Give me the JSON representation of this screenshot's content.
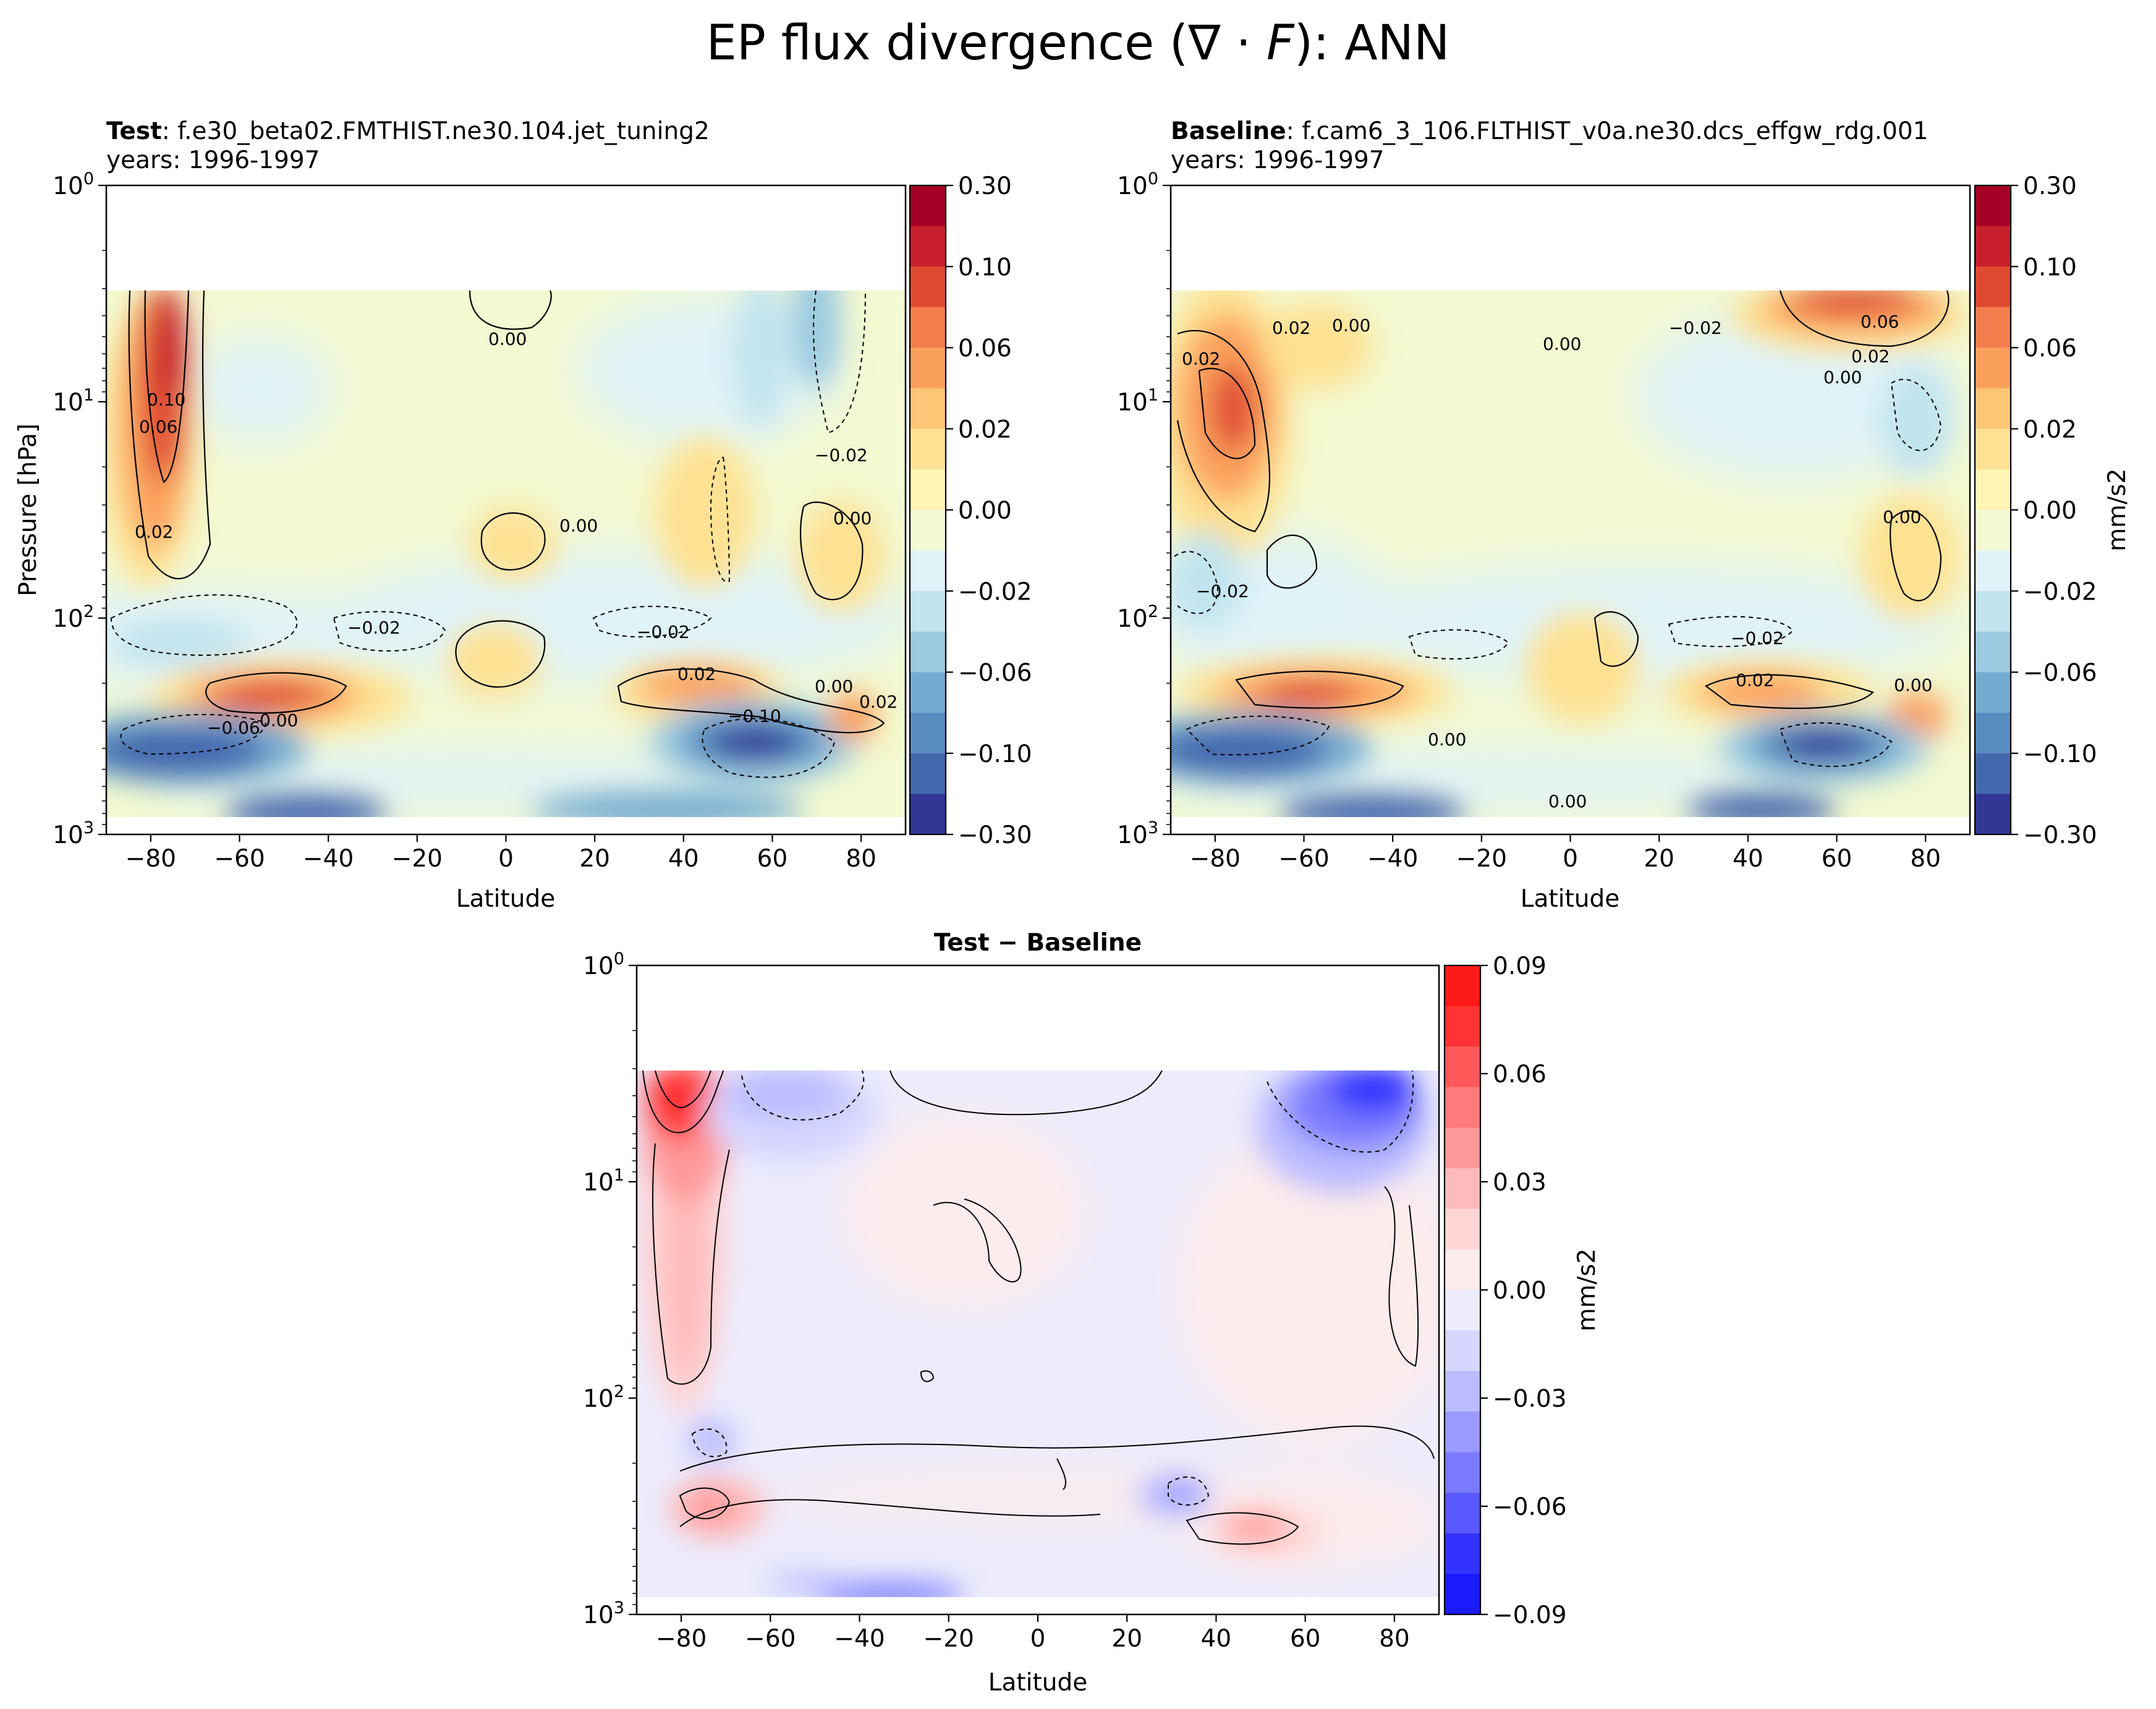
{
  "figure": {
    "title": "EP flux divergence (∇ · F): ANN",
    "title_plain": "EP flux divergence (",
    "title_symbol": "∇ · ",
    "title_var": "F",
    "title_end": "): ANN"
  },
  "chart_data": [
    {
      "type": "contourf",
      "name": "test",
      "title_bold": "Test",
      "title_rest": ": f.e30_beta02.FMTHIST.ne30.104.jet_tuning2",
      "subtitle": "years: 1996-1997",
      "xlabel": "Latitude",
      "ylabel": "Pressure [hPa]",
      "xlim": [
        -90,
        90
      ],
      "ylim": [
        1000,
        1
      ],
      "yscale": "log",
      "x_ticks": [
        -80,
        -60,
        -40,
        -20,
        0,
        20,
        40,
        60,
        80
      ],
      "y_ticks": [
        {
          "base": "10",
          "exp": "0"
        },
        {
          "base": "10",
          "exp": "1"
        },
        {
          "base": "10",
          "exp": "2"
        },
        {
          "base": "10",
          "exp": "3"
        }
      ],
      "colorbar": {
        "label": "",
        "ticks": [
          "0.30",
          "0.10",
          "0.06",
          "0.02",
          "0.00",
          "−0.02",
          "−0.06",
          "−0.10",
          "−0.30"
        ],
        "colors": [
          "#a50026",
          "#c7202b",
          "#e04a33",
          "#f47d4d",
          "#fba05c",
          "#fdc576",
          "#fee192",
          "#fff5b4",
          "#f3f9d0",
          "#e0f3f8",
          "#c1e4ef",
          "#9bcae1",
          "#74acd1",
          "#578cc0",
          "#4468ae",
          "#313695"
        ]
      },
      "contour_labels": [
        "0.00",
        "0.10",
        "0.06",
        "−0.02",
        "0.02",
        "0.00",
        "−0.02",
        "−0.02",
        "0.00",
        "0.02",
        "0.00",
        "0.00",
        "−0.06",
        "−0.10",
        "0.02"
      ],
      "features": [
        {
          "lat": -75,
          "p_hPa": 10,
          "value": 0.12
        },
        {
          "lat": -55,
          "p_hPa": 250,
          "value": 0.06
        },
        {
          "lat": -65,
          "p_hPa": 400,
          "value": -0.12
        },
        {
          "lat": 40,
          "p_hPa": 230,
          "value": 0.04
        },
        {
          "lat": 55,
          "p_hPa": 400,
          "value": -0.15
        },
        {
          "lat": 75,
          "p_hPa": 15,
          "value": -0.06
        },
        {
          "lat": 75,
          "p_hPa": 60,
          "value": 0.02
        }
      ]
    },
    {
      "type": "contourf",
      "name": "baseline",
      "title_bold": "Baseline",
      "title_rest": ": f.cam6_3_106.FLTHIST_v0a.ne30.dcs_effgw_rdg.001",
      "subtitle": "years: 1996-1997",
      "xlabel": "Latitude",
      "ylabel": "",
      "xlim": [
        -90,
        90
      ],
      "ylim": [
        1000,
        1
      ],
      "yscale": "log",
      "x_ticks": [
        -80,
        -60,
        -40,
        -20,
        0,
        20,
        40,
        60,
        80
      ],
      "y_ticks": [
        {
          "base": "10",
          "exp": "0"
        },
        {
          "base": "10",
          "exp": "1"
        },
        {
          "base": "10",
          "exp": "2"
        },
        {
          "base": "10",
          "exp": "3"
        }
      ],
      "colorbar": {
        "label": "mm/s2",
        "ticks": [
          "0.30",
          "0.10",
          "0.06",
          "0.02",
          "0.00",
          "−0.02",
          "−0.06",
          "−0.10",
          "−0.30"
        ],
        "colors": [
          "#a50026",
          "#c7202b",
          "#e04a33",
          "#f47d4d",
          "#fba05c",
          "#fdc576",
          "#fee192",
          "#fff5b4",
          "#f3f9d0",
          "#e0f3f8",
          "#c1e4ef",
          "#9bcae1",
          "#74acd1",
          "#578cc0",
          "#4468ae",
          "#313695"
        ]
      },
      "contour_labels": [
        "0.02",
        "0.02",
        "0.00",
        "0.00",
        "−0.02",
        "0.06",
        "0.02",
        "0.00",
        "0.00",
        "−0.02",
        "−0.02",
        "0.02",
        "0.00",
        "0.00",
        "0.00"
      ],
      "features": [
        {
          "lat": -80,
          "p_hPa": 10,
          "value": 0.05
        },
        {
          "lat": -60,
          "p_hPa": 250,
          "value": 0.05
        },
        {
          "lat": -65,
          "p_hPa": 420,
          "value": -0.12
        },
        {
          "lat": 65,
          "p_hPa": 4,
          "value": 0.07
        },
        {
          "lat": 75,
          "p_hPa": 15,
          "value": -0.03
        },
        {
          "lat": 40,
          "p_hPa": 230,
          "value": 0.05
        },
        {
          "lat": 58,
          "p_hPa": 400,
          "value": -0.15
        }
      ]
    },
    {
      "type": "contourf",
      "name": "difference",
      "title_bold": "Test − Baseline",
      "title_rest": "",
      "subtitle": "",
      "xlabel": "Latitude",
      "ylabel": "",
      "xlim": [
        -90,
        90
      ],
      "ylim": [
        1000,
        1
      ],
      "yscale": "log",
      "x_ticks": [
        -80,
        -60,
        -40,
        -20,
        0,
        20,
        40,
        60,
        80
      ],
      "y_ticks": [
        {
          "base": "10",
          "exp": "0"
        },
        {
          "base": "10",
          "exp": "1"
        },
        {
          "base": "10",
          "exp": "2"
        },
        {
          "base": "10",
          "exp": "3"
        }
      ],
      "colorbar": {
        "label": "mm/s2",
        "ticks": [
          "0.09",
          "0.06",
          "0.03",
          "0.00",
          "−0.03",
          "−0.06",
          "−0.09"
        ],
        "colors": [
          "#ff1a1a",
          "#ff3333",
          "#ff5959",
          "#ff7a7a",
          "#ff9999",
          "#ffbbbb",
          "#ffd6d6",
          "#fdecec",
          "#ececfd",
          "#d6d6ff",
          "#bbbbff",
          "#9999ff",
          "#7a7aff",
          "#5959ff",
          "#3333ff",
          "#1a1aff"
        ]
      },
      "features": [
        {
          "lat": -78,
          "p_hPa": 5,
          "value": 0.09
        },
        {
          "lat": -80,
          "p_hPa": 40,
          "value": 0.03
        },
        {
          "lat": -75,
          "p_hPa": 350,
          "value": 0.03
        },
        {
          "lat": -62,
          "p_hPa": 6,
          "value": -0.05
        },
        {
          "lat": 70,
          "p_hPa": 5,
          "value": -0.09
        },
        {
          "lat": 45,
          "p_hPa": 420,
          "value": 0.03
        },
        {
          "lat": 30,
          "p_hPa": 280,
          "value": -0.03
        }
      ]
    }
  ]
}
